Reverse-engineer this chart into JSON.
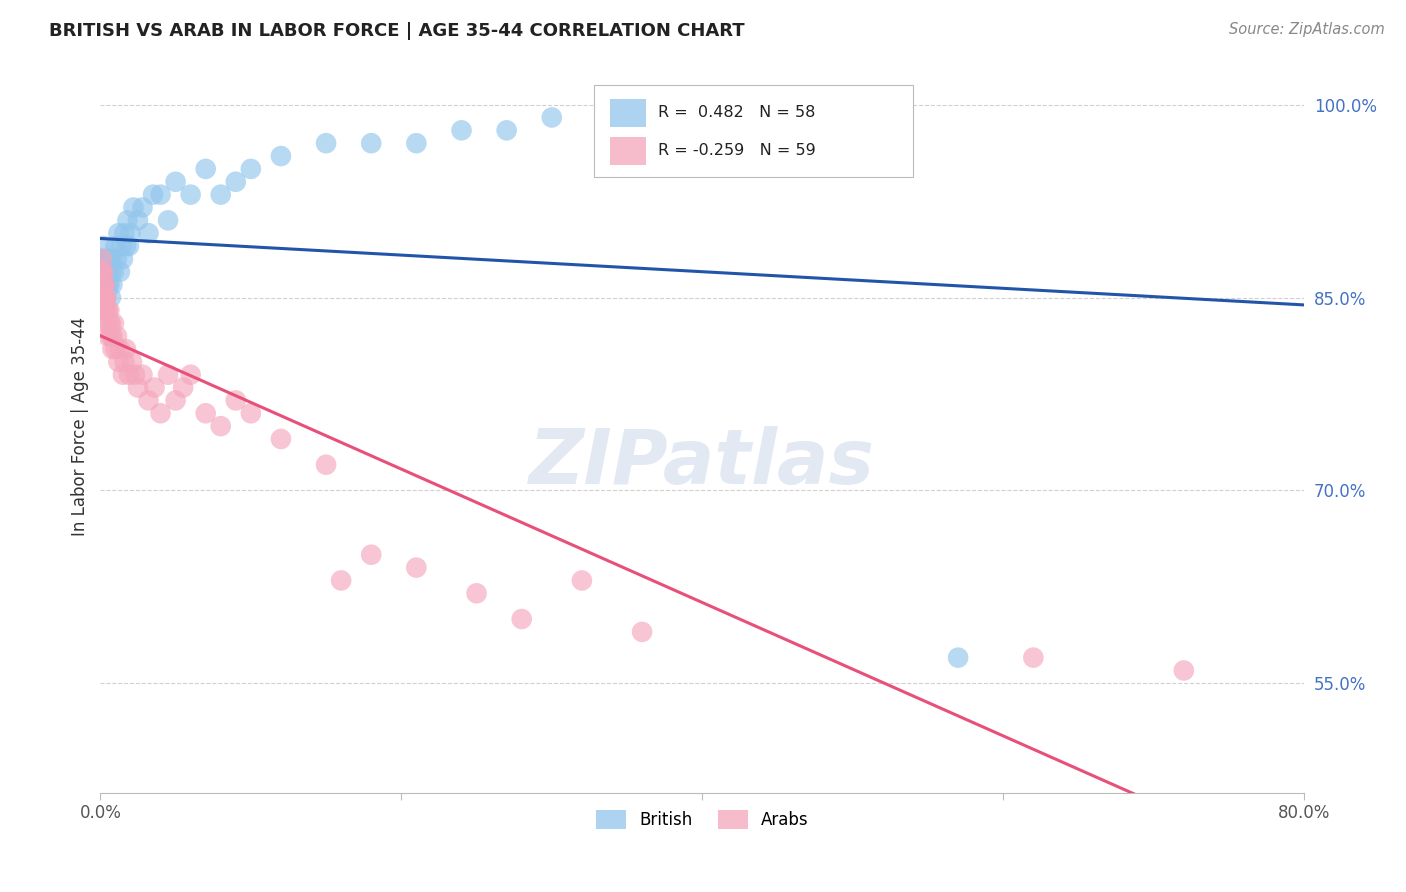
{
  "title": "BRITISH VS ARAB IN LABOR FORCE | AGE 35-44 CORRELATION CHART",
  "source": "Source: ZipAtlas.com",
  "ylabel": "In Labor Force | Age 35-44",
  "xmin": 0.0,
  "xmax": 0.8,
  "ymin": 0.465,
  "ymax": 1.035,
  "yticks": [
    0.55,
    0.7,
    0.85,
    1.0
  ],
  "ytick_labels": [
    "55.0%",
    "70.0%",
    "85.0%",
    "100.0%"
  ],
  "xticks": [
    0.0,
    0.2,
    0.4,
    0.6,
    0.8
  ],
  "xtick_labels": [
    "0.0%",
    "",
    "",
    "",
    "80.0%"
  ],
  "british_R": 0.482,
  "british_N": 58,
  "arab_R": -0.259,
  "arab_N": 59,
  "british_color": "#92C5EC",
  "arab_color": "#F4A6BC",
  "british_line_color": "#2255AA",
  "arab_line_color": "#E8507A",
  "british_x": [
    0.001,
    0.001,
    0.001,
    0.001,
    0.001,
    0.002,
    0.002,
    0.002,
    0.002,
    0.002,
    0.003,
    0.003,
    0.003,
    0.003,
    0.004,
    0.004,
    0.004,
    0.005,
    0.005,
    0.006,
    0.006,
    0.007,
    0.007,
    0.008,
    0.008,
    0.009,
    0.01,
    0.011,
    0.012,
    0.013,
    0.014,
    0.015,
    0.016,
    0.017,
    0.018,
    0.019,
    0.02,
    0.022,
    0.025,
    0.028,
    0.032,
    0.035,
    0.04,
    0.045,
    0.05,
    0.06,
    0.07,
    0.08,
    0.09,
    0.1,
    0.12,
    0.15,
    0.18,
    0.21,
    0.24,
    0.27,
    0.3,
    0.57
  ],
  "british_y": [
    0.87,
    0.88,
    0.86,
    0.85,
    0.87,
    0.86,
    0.88,
    0.85,
    0.87,
    0.89,
    0.86,
    0.87,
    0.85,
    0.86,
    0.87,
    0.85,
    0.88,
    0.86,
    0.87,
    0.86,
    0.88,
    0.85,
    0.87,
    0.88,
    0.86,
    0.87,
    0.89,
    0.88,
    0.9,
    0.87,
    0.89,
    0.88,
    0.9,
    0.89,
    0.91,
    0.89,
    0.9,
    0.92,
    0.91,
    0.92,
    0.9,
    0.93,
    0.93,
    0.91,
    0.94,
    0.93,
    0.95,
    0.93,
    0.94,
    0.95,
    0.96,
    0.97,
    0.97,
    0.97,
    0.98,
    0.98,
    0.99,
    0.57
  ],
  "arab_x": [
    0.001,
    0.001,
    0.001,
    0.001,
    0.001,
    0.002,
    0.002,
    0.002,
    0.002,
    0.003,
    0.003,
    0.003,
    0.003,
    0.004,
    0.004,
    0.004,
    0.005,
    0.005,
    0.006,
    0.006,
    0.007,
    0.007,
    0.008,
    0.008,
    0.009,
    0.01,
    0.011,
    0.012,
    0.013,
    0.015,
    0.016,
    0.017,
    0.019,
    0.021,
    0.023,
    0.025,
    0.028,
    0.032,
    0.036,
    0.04,
    0.045,
    0.05,
    0.055,
    0.06,
    0.07,
    0.08,
    0.09,
    0.1,
    0.12,
    0.15,
    0.16,
    0.18,
    0.21,
    0.25,
    0.28,
    0.32,
    0.36,
    0.62,
    0.72
  ],
  "arab_y": [
    0.88,
    0.87,
    0.86,
    0.85,
    0.87,
    0.86,
    0.87,
    0.85,
    0.86,
    0.85,
    0.86,
    0.84,
    0.85,
    0.84,
    0.85,
    0.83,
    0.84,
    0.82,
    0.83,
    0.84,
    0.82,
    0.83,
    0.81,
    0.82,
    0.83,
    0.81,
    0.82,
    0.8,
    0.81,
    0.79,
    0.8,
    0.81,
    0.79,
    0.8,
    0.79,
    0.78,
    0.79,
    0.77,
    0.78,
    0.76,
    0.79,
    0.77,
    0.78,
    0.79,
    0.76,
    0.75,
    0.77,
    0.76,
    0.74,
    0.72,
    0.63,
    0.65,
    0.64,
    0.62,
    0.6,
    0.63,
    0.59,
    0.57,
    0.56
  ]
}
